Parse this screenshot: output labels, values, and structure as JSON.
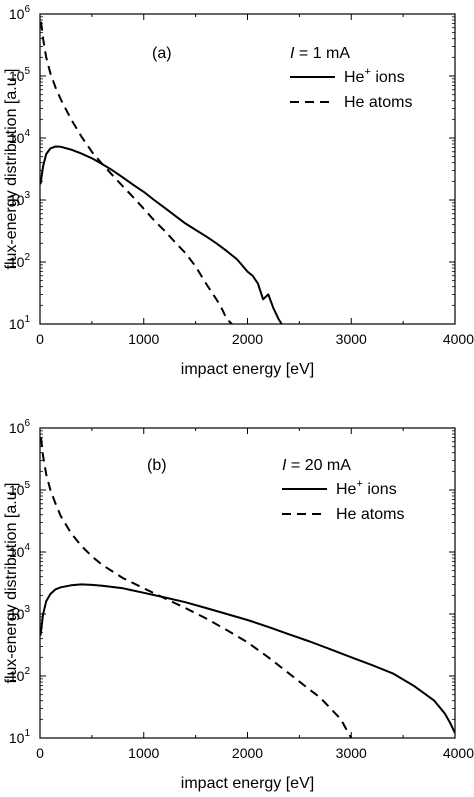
{
  "chart_data": [
    {
      "type": "line",
      "panel_label": "(a)",
      "current_var": "I",
      "current_value": " = 1 mA",
      "xlabel": "impact energy [eV]",
      "ylabel": "flux-energy distribution [a.u.]",
      "xlim": [
        0,
        4000
      ],
      "ylim": [
        10,
        1000000
      ],
      "yscale": "log",
      "x_ticks": [
        "0",
        "1000",
        "2000",
        "3000",
        "4000"
      ],
      "y_ticks": [
        {
          "base": "10",
          "exp": "1"
        },
        {
          "base": "10",
          "exp": "2"
        },
        {
          "base": "10",
          "exp": "3"
        },
        {
          "base": "10",
          "exp": "4"
        },
        {
          "base": "10",
          "exp": "5"
        },
        {
          "base": "10",
          "exp": "6"
        }
      ],
      "legend_position": "top-right",
      "series": [
        {
          "name_main": "He",
          "name_sup": "+",
          "name_rest": " ions",
          "style": "solid",
          "points": [
            [
              5,
              1800
            ],
            [
              30,
              3500
            ],
            [
              60,
              5500
            ],
            [
              100,
              6800
            ],
            [
              150,
              7300
            ],
            [
              200,
              7200
            ],
            [
              300,
              6500
            ],
            [
              400,
              5600
            ],
            [
              500,
              4700
            ],
            [
              600,
              3800
            ],
            [
              700,
              3000
            ],
            [
              800,
              2300
            ],
            [
              900,
              1750
            ],
            [
              1000,
              1350
            ],
            [
              1100,
              1000
            ],
            [
              1200,
              750
            ],
            [
              1300,
              560
            ],
            [
              1400,
              420
            ],
            [
              1500,
              330
            ],
            [
              1600,
              260
            ],
            [
              1700,
              200
            ],
            [
              1800,
              150
            ],
            [
              1900,
              110
            ],
            [
              2000,
              70
            ],
            [
              2050,
              60
            ],
            [
              2100,
              45
            ],
            [
              2150,
              25
            ],
            [
              2200,
              30
            ],
            [
              2250,
              18
            ],
            [
              2300,
              12
            ],
            [
              2330,
              10
            ]
          ]
        },
        {
          "name_main": "He",
          "name_sup": "",
          "name_rest": " atoms",
          "style": "dashed",
          "points": [
            [
              10,
              750000
            ],
            [
              30,
              400000
            ],
            [
              60,
              200000
            ],
            [
              100,
              110000
            ],
            [
              150,
              65000
            ],
            [
              200,
              42000
            ],
            [
              300,
              20000
            ],
            [
              400,
              10500
            ],
            [
              500,
              6000
            ],
            [
              600,
              3800
            ],
            [
              700,
              2500
            ],
            [
              800,
              1650
            ],
            [
              900,
              1100
            ],
            [
              1000,
              720
            ],
            [
              1100,
              470
            ],
            [
              1200,
              320
            ],
            [
              1300,
              210
            ],
            [
              1400,
              140
            ],
            [
              1500,
              85
            ],
            [
              1600,
              45
            ],
            [
              1700,
              25
            ],
            [
              1750,
              18
            ],
            [
              1800,
              12
            ],
            [
              1850,
              10
            ]
          ]
        }
      ]
    },
    {
      "type": "line",
      "panel_label": "(b)",
      "current_var": "I",
      "current_value": " = 20 mA",
      "xlabel": "impact energy [eV]",
      "ylabel": "flux-energy distribution [a.u.]",
      "xlim": [
        0,
        4000
      ],
      "ylim": [
        10,
        1000000
      ],
      "yscale": "log",
      "x_ticks": [
        "0",
        "1000",
        "2000",
        "3000",
        "4000"
      ],
      "y_ticks": [
        {
          "base": "10",
          "exp": "1"
        },
        {
          "base": "10",
          "exp": "2"
        },
        {
          "base": "10",
          "exp": "3"
        },
        {
          "base": "10",
          "exp": "4"
        },
        {
          "base": "10",
          "exp": "5"
        },
        {
          "base": "10",
          "exp": "6"
        }
      ],
      "legend_position": "top-right",
      "series": [
        {
          "name_main": "He",
          "name_sup": "+",
          "name_rest": " ions",
          "style": "solid",
          "points": [
            [
              5,
              450
            ],
            [
              30,
              1000
            ],
            [
              60,
              1600
            ],
            [
              100,
              2100
            ],
            [
              150,
              2500
            ],
            [
              200,
              2700
            ],
            [
              300,
              2900
            ],
            [
              400,
              3000
            ],
            [
              500,
              2950
            ],
            [
              600,
              2850
            ],
            [
              800,
              2600
            ],
            [
              1000,
              2200
            ],
            [
              1200,
              1850
            ],
            [
              1400,
              1550
            ],
            [
              1600,
              1250
            ],
            [
              1800,
              1000
            ],
            [
              2000,
              800
            ],
            [
              2200,
              620
            ],
            [
              2400,
              470
            ],
            [
              2600,
              360
            ],
            [
              2800,
              270
            ],
            [
              3000,
              200
            ],
            [
              3200,
              150
            ],
            [
              3400,
              110
            ],
            [
              3600,
              70
            ],
            [
              3800,
              40
            ],
            [
              3900,
              25
            ],
            [
              3950,
              18
            ],
            [
              4000,
              12
            ]
          ]
        },
        {
          "name_main": "He",
          "name_sup": "",
          "name_rest": " atoms",
          "style": "dashed",
          "points": [
            [
              10,
              700000
            ],
            [
              30,
              350000
            ],
            [
              60,
              180000
            ],
            [
              100,
              100000
            ],
            [
              150,
              60000
            ],
            [
              200,
              38000
            ],
            [
              300,
              20000
            ],
            [
              400,
              12500
            ],
            [
              500,
              8500
            ],
            [
              600,
              6200
            ],
            [
              800,
              3800
            ],
            [
              1000,
              2600
            ],
            [
              1200,
              1800
            ],
            [
              1400,
              1250
            ],
            [
              1600,
              850
            ],
            [
              1800,
              550
            ],
            [
              2000,
              350
            ],
            [
              2200,
              200
            ],
            [
              2400,
              110
            ],
            [
              2600,
              60
            ],
            [
              2700,
              45
            ],
            [
              2800,
              30
            ],
            [
              2900,
              20
            ],
            [
              2950,
              14
            ],
            [
              3000,
              10
            ]
          ]
        }
      ]
    }
  ]
}
